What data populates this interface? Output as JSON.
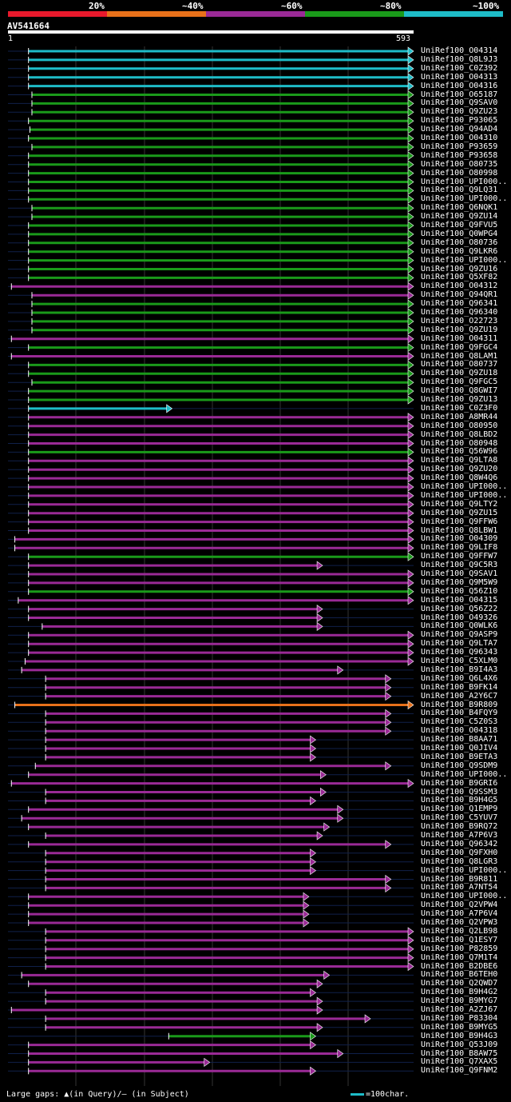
{
  "legend": {
    "items": [
      {
        "label": "20%",
        "color": "#e8192c"
      },
      {
        "label": "~40%",
        "color": "#e8711a"
      },
      {
        "label": "~60%",
        "color": "#9a2a96"
      },
      {
        "label": "~80%",
        "color": "#1a9a1a"
      },
      {
        "label": "~100%",
        "color": "#1ebcc8"
      }
    ]
  },
  "query": {
    "name": "AV541664",
    "start": "1",
    "end": "593"
  },
  "footer": {
    "gaps_text": "Large gaps: ▲(in Query)/— (in Subject)",
    "scale_text": "=100char."
  },
  "chart_data": {
    "type": "alignment-map",
    "query_length": 593,
    "hits": [
      {
        "id": "UniRef100_O04314",
        "color": "#1ebcc8",
        "start": 30,
        "end": 593
      },
      {
        "id": "UniRef100_Q8L9J3",
        "color": "#1ebcc8",
        "start": 30,
        "end": 593
      },
      {
        "id": "UniRef100_C0Z392",
        "color": "#1ebcc8",
        "start": 30,
        "end": 593
      },
      {
        "id": "UniRef100_O04313",
        "color": "#1ebcc8",
        "start": 30,
        "end": 593
      },
      {
        "id": "UniRef100_O04316",
        "color": "#1ebcc8",
        "start": 30,
        "end": 593
      },
      {
        "id": "UniRef100_O65187",
        "color": "#1a9a1a",
        "start": 35,
        "end": 593
      },
      {
        "id": "UniRef100_Q9SAV0",
        "color": "#1a9a1a",
        "start": 35,
        "end": 593
      },
      {
        "id": "UniRef100_Q9ZU23",
        "color": "#1a9a1a",
        "start": 35,
        "end": 593
      },
      {
        "id": "UniRef100_P93065",
        "color": "#1a9a1a",
        "start": 30,
        "end": 593
      },
      {
        "id": "UniRef100_Q94AD4",
        "color": "#1a9a1a",
        "start": 32,
        "end": 593
      },
      {
        "id": "UniRef100_O04310",
        "color": "#1a9a1a",
        "start": 30,
        "end": 593
      },
      {
        "id": "UniRef100_P93659",
        "color": "#1a9a1a",
        "start": 35,
        "end": 593
      },
      {
        "id": "UniRef100_P93658",
        "color": "#1a9a1a",
        "start": 30,
        "end": 593
      },
      {
        "id": "UniRef100_O80735",
        "color": "#1a9a1a",
        "start": 30,
        "end": 593
      },
      {
        "id": "UniRef100_O80998",
        "color": "#1a9a1a",
        "start": 30,
        "end": 593
      },
      {
        "id": "UniRef100_UPI000..",
        "color": "#1a9a1a",
        "start": 30,
        "end": 593
      },
      {
        "id": "UniRef100_Q9LQ31",
        "color": "#1a9a1a",
        "start": 30,
        "end": 593
      },
      {
        "id": "UniRef100_UPI000..",
        "color": "#1a9a1a",
        "start": 30,
        "end": 593
      },
      {
        "id": "UniRef100_Q6NQK1",
        "color": "#1a9a1a",
        "start": 35,
        "end": 593
      },
      {
        "id": "UniRef100_Q9ZU14",
        "color": "#1a9a1a",
        "start": 35,
        "end": 593
      },
      {
        "id": "UniRef100_Q9FVU5",
        "color": "#1a9a1a",
        "start": 30,
        "end": 593
      },
      {
        "id": "UniRef100_Q0WPG4",
        "color": "#1a9a1a",
        "start": 30,
        "end": 593
      },
      {
        "id": "UniRef100_O80736",
        "color": "#1a9a1a",
        "start": 30,
        "end": 593
      },
      {
        "id": "UniRef100_Q9LKR6",
        "color": "#1a9a1a",
        "start": 30,
        "end": 593
      },
      {
        "id": "UniRef100_UPI000..",
        "color": "#1a9a1a",
        "start": 30,
        "end": 593
      },
      {
        "id": "UniRef100_Q9ZU16",
        "color": "#1a9a1a",
        "start": 30,
        "end": 593
      },
      {
        "id": "UniRef100_Q5XF82",
        "color": "#1a9a1a",
        "start": 30,
        "end": 593
      },
      {
        "id": "UniRef100_O04312",
        "color": "#9a2a96",
        "start": 5,
        "end": 593
      },
      {
        "id": "UniRef100_Q94QR1",
        "color": "#9a2a96",
        "start": 35,
        "end": 593
      },
      {
        "id": "UniRef100_Q96341",
        "color": "#1a9a1a",
        "start": 35,
        "end": 593
      },
      {
        "id": "UniRef100_Q96340",
        "color": "#1a9a1a",
        "start": 35,
        "end": 593
      },
      {
        "id": "UniRef100_O22723",
        "color": "#1a9a1a",
        "start": 35,
        "end": 593
      },
      {
        "id": "UniRef100_Q9ZU19",
        "color": "#1a9a1a",
        "start": 35,
        "end": 593
      },
      {
        "id": "UniRef100_O04311",
        "color": "#9a2a96",
        "start": 5,
        "end": 593
      },
      {
        "id": "UniRef100_Q9FGC4",
        "color": "#1a9a1a",
        "start": 30,
        "end": 593
      },
      {
        "id": "UniRef100_Q8LAM1",
        "color": "#9a2a96",
        "start": 5,
        "end": 593
      },
      {
        "id": "UniRef100_O80737",
        "color": "#1a9a1a",
        "start": 30,
        "end": 593
      },
      {
        "id": "UniRef100_Q9ZU18",
        "color": "#1a9a1a",
        "start": 30,
        "end": 593
      },
      {
        "id": "UniRef100_Q9FGC5",
        "color": "#1a9a1a",
        "start": 35,
        "end": 593
      },
      {
        "id": "UniRef100_Q8GWI7",
        "color": "#1a9a1a",
        "start": 30,
        "end": 593
      },
      {
        "id": "UniRef100_Q9ZU13",
        "color": "#1a9a1a",
        "start": 30,
        "end": 593
      },
      {
        "id": "UniRef100_C0Z3F0",
        "color": "#1ebcc8",
        "start": 30,
        "end": 240
      },
      {
        "id": "UniRef100_A8MR44",
        "color": "#9a2a96",
        "start": 30,
        "end": 593
      },
      {
        "id": "UniRef100_O80950",
        "color": "#9a2a96",
        "start": 30,
        "end": 593
      },
      {
        "id": "UniRef100_Q8LBD2",
        "color": "#9a2a96",
        "start": 30,
        "end": 593
      },
      {
        "id": "UniRef100_O80948",
        "color": "#9a2a96",
        "start": 30,
        "end": 593
      },
      {
        "id": "UniRef100_Q56W96",
        "color": "#1a9a1a",
        "start": 30,
        "end": 593
      },
      {
        "id": "UniRef100_Q9LTA8",
        "color": "#9a2a96",
        "start": 30,
        "end": 593
      },
      {
        "id": "UniRef100_Q9ZU20",
        "color": "#9a2a96",
        "start": 30,
        "end": 593
      },
      {
        "id": "UniRef100_Q8W4Q6",
        "color": "#9a2a96",
        "start": 30,
        "end": 593
      },
      {
        "id": "UniRef100_UPI000..",
        "color": "#9a2a96",
        "start": 30,
        "end": 593
      },
      {
        "id": "UniRef100_UPI000..",
        "color": "#9a2a96",
        "start": 30,
        "end": 593
      },
      {
        "id": "UniRef100_Q9LTY2",
        "color": "#9a2a96",
        "start": 30,
        "end": 593
      },
      {
        "id": "UniRef100_Q9ZU15",
        "color": "#9a2a96",
        "start": 30,
        "end": 593
      },
      {
        "id": "UniRef100_Q9FFW6",
        "color": "#9a2a96",
        "start": 30,
        "end": 593
      },
      {
        "id": "UniRef100_Q8LBW1",
        "color": "#9a2a96",
        "start": 30,
        "end": 593
      },
      {
        "id": "UniRef100_O04309",
        "color": "#9a2a96",
        "start": 10,
        "end": 593
      },
      {
        "id": "UniRef100_Q9LIF8",
        "color": "#9a2a96",
        "start": 10,
        "end": 593
      },
      {
        "id": "UniRef100_Q9FFW7",
        "color": "#1a9a1a",
        "start": 30,
        "end": 593
      },
      {
        "id": "UniRef100_Q9C5R3",
        "color": "#9a2a96",
        "start": 30,
        "end": 460
      },
      {
        "id": "UniRef100_Q9SAV1",
        "color": "#9a2a96",
        "start": 30,
        "end": 593
      },
      {
        "id": "UniRef100_Q9M5W9",
        "color": "#9a2a96",
        "start": 30,
        "end": 593
      },
      {
        "id": "UniRef100_Q56Z10",
        "color": "#1a9a1a",
        "start": 30,
        "end": 593
      },
      {
        "id": "UniRef100_O04315",
        "color": "#9a2a96",
        "start": 15,
        "end": 593
      },
      {
        "id": "UniRef100_Q56Z22",
        "color": "#9a2a96",
        "start": 30,
        "end": 460
      },
      {
        "id": "UniRef100_O49326",
        "color": "#9a2a96",
        "start": 30,
        "end": 460
      },
      {
        "id": "UniRef100_Q0WLK6",
        "color": "#9a2a96",
        "start": 50,
        "end": 460
      },
      {
        "id": "UniRef100_Q9ASP9",
        "color": "#9a2a96",
        "start": 30,
        "end": 593
      },
      {
        "id": "UniRef100_Q9LTA7",
        "color": "#9a2a96",
        "start": 30,
        "end": 593
      },
      {
        "id": "UniRef100_Q96343",
        "color": "#9a2a96",
        "start": 30,
        "end": 593
      },
      {
        "id": "UniRef100_C5XLM0",
        "color": "#9a2a96",
        "start": 25,
        "end": 593
      },
      {
        "id": "UniRef100_B9I4A3",
        "color": "#9a2a96",
        "start": 20,
        "end": 490
      },
      {
        "id": "UniRef100_Q6L4X6",
        "color": "#9a2a96",
        "start": 55,
        "end": 560
      },
      {
        "id": "UniRef100_B9FK14",
        "color": "#9a2a96",
        "start": 55,
        "end": 560
      },
      {
        "id": "UniRef100_A2Y6C7",
        "color": "#9a2a96",
        "start": 55,
        "end": 560
      },
      {
        "id": "UniRef100_B9R809",
        "color": "#e8711a",
        "start": 10,
        "end": 593
      },
      {
        "id": "UniRef100_B4FQY9",
        "color": "#9a2a96",
        "start": 55,
        "end": 560
      },
      {
        "id": "UniRef100_C5Z0S3",
        "color": "#9a2a96",
        "start": 55,
        "end": 560
      },
      {
        "id": "UniRef100_O04318",
        "color": "#9a2a96",
        "start": 55,
        "end": 560
      },
      {
        "id": "UniRef100_B8AA71",
        "color": "#9a2a96",
        "start": 55,
        "end": 450
      },
      {
        "id": "UniRef100_Q0JIV4",
        "color": "#9a2a96",
        "start": 55,
        "end": 450
      },
      {
        "id": "UniRef100_B9ETA3",
        "color": "#9a2a96",
        "start": 55,
        "end": 450
      },
      {
        "id": "UniRef100_Q9SDM9",
        "color": "#9a2a96",
        "start": 40,
        "end": 560
      },
      {
        "id": "UniRef100_UPI000..",
        "color": "#9a2a96",
        "start": 30,
        "end": 465
      },
      {
        "id": "UniRef100_B9GRI6",
        "color": "#9a2a96",
        "start": 5,
        "end": 593
      },
      {
        "id": "UniRef100_Q9SSM3",
        "color": "#9a2a96",
        "start": 55,
        "end": 465
      },
      {
        "id": "UniRef100_B9H4G5",
        "color": "#9a2a96",
        "start": 55,
        "end": 450
      },
      {
        "id": "UniRef100_Q1EMP9",
        "color": "#9a2a96",
        "start": 30,
        "end": 490
      },
      {
        "id": "UniRef100_C5YUV7",
        "color": "#9a2a96",
        "start": 20,
        "end": 490
      },
      {
        "id": "UniRef100_B9RQ72",
        "color": "#9a2a96",
        "start": 30,
        "end": 470
      },
      {
        "id": "UniRef100_A7P6V3",
        "color": "#9a2a96",
        "start": 55,
        "end": 460
      },
      {
        "id": "UniRef100_Q96342",
        "color": "#9a2a96",
        "start": 30,
        "end": 560
      },
      {
        "id": "UniRef100_Q9FXH0",
        "color": "#9a2a96",
        "start": 55,
        "end": 450
      },
      {
        "id": "UniRef100_Q8LGR3",
        "color": "#9a2a96",
        "start": 55,
        "end": 450
      },
      {
        "id": "UniRef100_UPI000..",
        "color": "#9a2a96",
        "start": 55,
        "end": 450
      },
      {
        "id": "UniRef100_B9R811",
        "color": "#9a2a96",
        "start": 55,
        "end": 560
      },
      {
        "id": "UniRef100_A7NT54",
        "color": "#9a2a96",
        "start": 55,
        "end": 560
      },
      {
        "id": "UniRef100_UPI000..",
        "color": "#9a2a96",
        "start": 30,
        "end": 440
      },
      {
        "id": "UniRef100_Q2VPW4",
        "color": "#9a2a96",
        "start": 30,
        "end": 440
      },
      {
        "id": "UniRef100_A7P6V4",
        "color": "#9a2a96",
        "start": 30,
        "end": 440
      },
      {
        "id": "UniRef100_Q2VPW3",
        "color": "#9a2a96",
        "start": 30,
        "end": 440
      },
      {
        "id": "UniRef100_Q2LB98",
        "color": "#9a2a96",
        "start": 55,
        "end": 593
      },
      {
        "id": "UniRef100_Q1ESY7",
        "color": "#9a2a96",
        "start": 55,
        "end": 593
      },
      {
        "id": "UniRef100_P82859",
        "color": "#9a2a96",
        "start": 55,
        "end": 593
      },
      {
        "id": "UniRef100_Q7M1T4",
        "color": "#9a2a96",
        "start": 55,
        "end": 593
      },
      {
        "id": "UniRef100_B2DBE6",
        "color": "#9a2a96",
        "start": 55,
        "end": 593
      },
      {
        "id": "UniRef100_B6TEH0",
        "color": "#9a2a96",
        "start": 20,
        "end": 470
      },
      {
        "id": "UniRef100_Q2QWD7",
        "color": "#9a2a96",
        "start": 30,
        "end": 460
      },
      {
        "id": "UniRef100_B9H4G2",
        "color": "#9a2a96",
        "start": 55,
        "end": 450
      },
      {
        "id": "UniRef100_B9MYG7",
        "color": "#9a2a96",
        "start": 55,
        "end": 460
      },
      {
        "id": "UniRef100_A2ZJ67",
        "color": "#9a2a96",
        "start": 5,
        "end": 460
      },
      {
        "id": "UniRef100_P83304",
        "color": "#9a2a96",
        "start": 55,
        "end": 530
      },
      {
        "id": "UniRef100_B9MYG5",
        "color": "#9a2a96",
        "start": 55,
        "end": 460
      },
      {
        "id": "UniRef100_B9H4G3",
        "color": "#1a9a1a",
        "start": 235,
        "end": 450
      },
      {
        "id": "UniRef100_Q53J09",
        "color": "#9a2a96",
        "start": 30,
        "end": 450
      },
      {
        "id": "UniRef100_B8AW75",
        "color": "#9a2a96",
        "start": 30,
        "end": 490
      },
      {
        "id": "UniRef100_Q7XAX5",
        "color": "#9a2a96",
        "start": 30,
        "end": 295
      },
      {
        "id": "UniRef100_Q9FNM2",
        "color": "#9a2a96",
        "start": 30,
        "end": 450
      }
    ]
  }
}
